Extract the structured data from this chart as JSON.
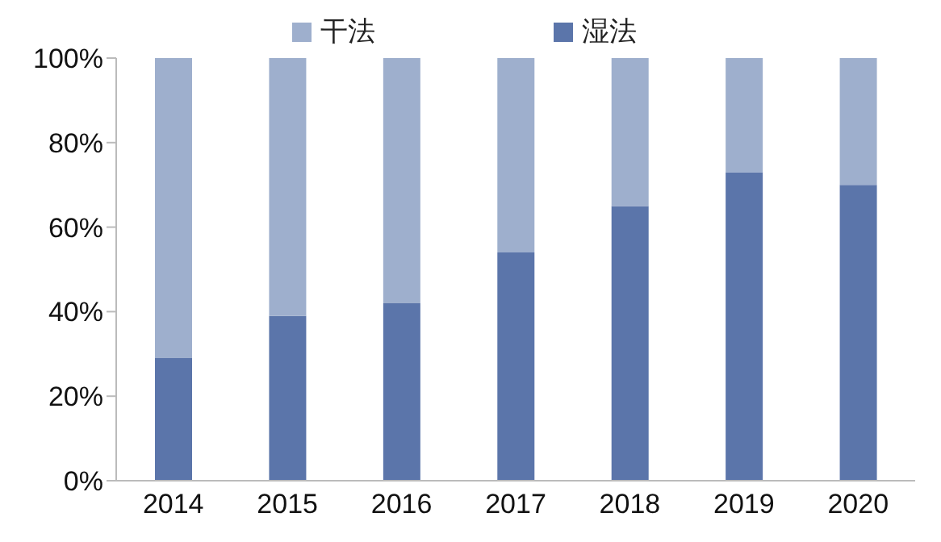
{
  "chart_data": {
    "type": "bar",
    "stacked": true,
    "categories": [
      "2014",
      "2015",
      "2016",
      "2017",
      "2018",
      "2019",
      "2020"
    ],
    "series": [
      {
        "name": "湿法",
        "color": "#5b75aa",
        "values": [
          29,
          39,
          42,
          54,
          65,
          73,
          70
        ]
      },
      {
        "name": "干法",
        "color": "#9eafcd",
        "values": [
          71,
          61,
          58,
          46,
          35,
          27,
          30
        ]
      }
    ],
    "ylim": [
      0,
      100
    ],
    "yticks": [
      {
        "value": 0,
        "label": "0%"
      },
      {
        "value": 20,
        "label": "20%"
      },
      {
        "value": 40,
        "label": "40%"
      },
      {
        "value": 60,
        "label": "60%"
      },
      {
        "value": 80,
        "label": "80%"
      },
      {
        "value": 100,
        "label": "100%"
      }
    ],
    "grid": false,
    "legend": "top"
  }
}
